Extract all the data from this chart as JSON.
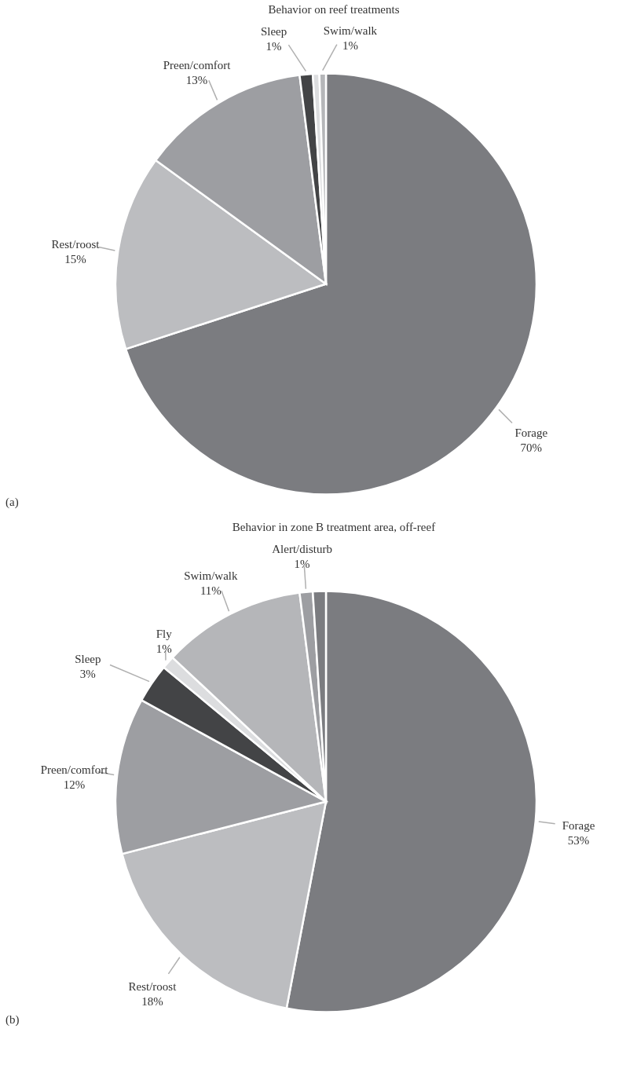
{
  "chart_data": [
    {
      "type": "pie",
      "title": "Behavior on reef treatments",
      "categories": [
        "Forage",
        "Rest/roost",
        "Preen/comfort",
        "Sleep",
        null,
        "Swim/walk"
      ],
      "values": [
        70,
        15,
        13,
        1,
        0.5,
        0.5
      ],
      "value_labels": [
        "70%",
        "15%",
        "13%",
        "1%",
        null,
        "1%"
      ],
      "colors": [
        "#7b7c80",
        "#bcbdc0",
        "#9d9ea2",
        "#434446",
        "#dcdddf",
        "#b5b6b9"
      ],
      "annotations": [
        "(a)"
      ]
    },
    {
      "type": "pie",
      "title": "Behavior in zone B treatment area, off-reef",
      "categories": [
        "Forage",
        "Rest/roost",
        "Preen/comfort",
        "Sleep",
        "Fly",
        "Swim/walk",
        "Alert/disturb",
        null
      ],
      "values": [
        53,
        18,
        12,
        3,
        1,
        11,
        1,
        1
      ],
      "value_labels": [
        "53%",
        "18%",
        "12%",
        "3%",
        "1%",
        "11%",
        "1%",
        null
      ],
      "colors": [
        "#7b7c80",
        "#bcbdc0",
        "#9d9ea2",
        "#434446",
        "#dcdddf",
        "#b5b6b9",
        "#9d9ea2",
        "#7b7c80"
      ],
      "annotations": [
        "(b)"
      ]
    }
  ]
}
